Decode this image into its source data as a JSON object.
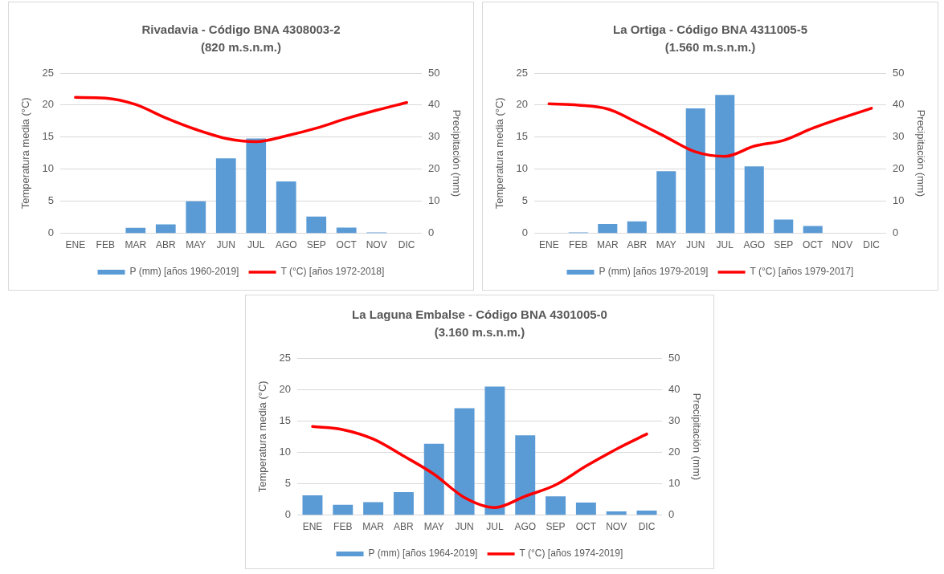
{
  "chart_data": [
    {
      "type": "bar",
      "title": "Rivadavia - Código BNA 4308003-2",
      "subtitle": "(820 m.s.n.m.)",
      "categories": [
        "ENE",
        "FEB",
        "MAR",
        "ABR",
        "MAY",
        "JUN",
        "JUL",
        "AGO",
        "SEP",
        "OCT",
        "NOV",
        "DIC"
      ],
      "series": [
        {
          "name": "P (mm) [años 1960-2019]",
          "axis": "y2",
          "color": "#5b9bd5",
          "values": [
            0,
            0,
            1.7,
            2.8,
            10.0,
            23.4,
            29.6,
            16.2,
            5.2,
            1.8,
            0.3,
            0
          ]
        },
        {
          "name": "T (°C) [años 1972-2018]",
          "type": "line",
          "color": "#ff0000",
          "values": [
            21.2,
            21.1,
            20.1,
            18.0,
            16.2,
            14.8,
            14.3,
            15.2,
            16.4,
            17.9,
            19.2,
            20.4
          ]
        }
      ],
      "ylabel": "Temperatura media (°C)",
      "y2label": "Precipitación (mm)",
      "ylim": [
        0,
        25
      ],
      "yticks": [
        0,
        5,
        10,
        15,
        20,
        25
      ],
      "y2lim": [
        0,
        50
      ],
      "y2ticks": [
        0,
        10,
        20,
        30,
        40,
        50
      ],
      "grid": "y",
      "legend": "bottom",
      "marker": "none",
      "line_style": "solid"
    },
    {
      "type": "bar",
      "title": "La Ortiga - Código BNA 4311005-5",
      "subtitle": "(1.560 m.s.n.m.)",
      "categories": [
        "ENE",
        "FEB",
        "MAR",
        "ABR",
        "MAY",
        "JUN",
        "JUL",
        "AGO",
        "SEP",
        "OCT",
        "NOV",
        "DIC"
      ],
      "series": [
        {
          "name": "P (mm) [años 1979-2019]",
          "axis": "y2",
          "color": "#5b9bd5",
          "values": [
            0,
            0.3,
            2.9,
            3.7,
            19.4,
            39.0,
            43.2,
            20.9,
            4.3,
            2.3,
            0,
            0
          ]
        },
        {
          "name": "T (°C) [años 1979-2017]",
          "type": "line",
          "color": "#ff0000",
          "values": [
            20.2,
            20.0,
            19.4,
            17.3,
            15.0,
            12.7,
            12.0,
            13.6,
            14.5,
            16.4,
            18.0,
            19.5
          ]
        }
      ],
      "ylabel": "Temperatura media (°C)",
      "y2label": "Precipitación (mm)",
      "ylim": [
        0,
        25
      ],
      "yticks": [
        0,
        5,
        10,
        15,
        20,
        25
      ],
      "y2lim": [
        0,
        50
      ],
      "y2ticks": [
        0,
        10,
        20,
        30,
        40,
        50
      ],
      "grid": "y",
      "legend": "bottom",
      "marker": "none",
      "line_style": "solid"
    },
    {
      "type": "bar",
      "title": "La Laguna Embalse - Código BNA 4301005-0",
      "subtitle": "(3.160 m.s.n.m.)",
      "categories": [
        "ENE",
        "FEB",
        "MAR",
        "ABR",
        "MAY",
        "JUN",
        "JUL",
        "AGO",
        "SEP",
        "OCT",
        "NOV",
        "DIC"
      ],
      "series": [
        {
          "name": "P (mm) [años 1964-2019]",
          "axis": "y2",
          "color": "#5b9bd5",
          "values": [
            6.3,
            3.3,
            4.1,
            7.3,
            22.7,
            34.0,
            40.9,
            25.4,
            6.0,
            4.0,
            1.2,
            1.4
          ]
        },
        {
          "name": "T (°C) [años 1974-2019]",
          "type": "line",
          "color": "#ff0000",
          "values": [
            14.1,
            13.6,
            12.1,
            9.4,
            6.5,
            2.8,
            1.2,
            3.0,
            4.8,
            7.8,
            10.5,
            12.9
          ]
        }
      ],
      "ylabel": "Temperatura media (°C)",
      "y2label": "Precipitación (mm)",
      "ylim": [
        0,
        25
      ],
      "yticks": [
        0,
        5,
        10,
        15,
        20,
        25
      ],
      "y2lim": [
        0,
        50
      ],
      "y2ticks": [
        0,
        10,
        20,
        30,
        40,
        50
      ],
      "grid": "y",
      "legend": "bottom",
      "marker": "none",
      "line_style": "solid"
    }
  ]
}
